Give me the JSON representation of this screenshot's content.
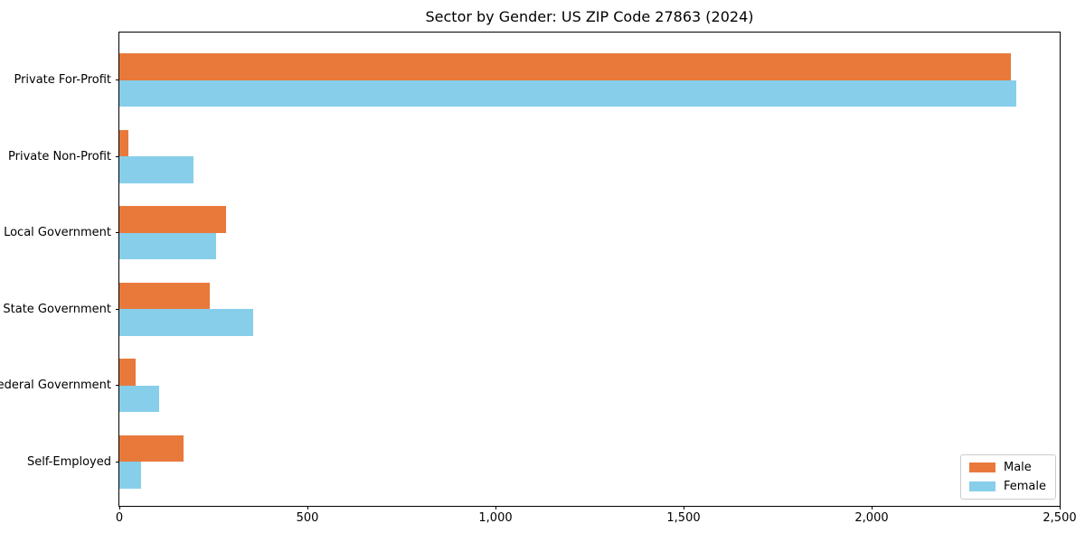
{
  "chart_data": {
    "type": "bar",
    "orientation": "horizontal",
    "title": "Sector by Gender: US ZIP Code 27863 (2024)",
    "categories": [
      "Private For-Profit",
      "Private Non-Profit",
      "Local Government",
      "State Government",
      "Federal Government",
      "Self-Employed"
    ],
    "series": [
      {
        "name": "Male",
        "color": "#E8793B",
        "values": [
          2370,
          24,
          283,
          240,
          43,
          170
        ]
      },
      {
        "name": "Female",
        "color": "#87CEEB",
        "values": [
          2385,
          197,
          257,
          355,
          106,
          58
        ]
      }
    ],
    "xlim": [
      0,
      2500
    ],
    "xticks": [
      0,
      500,
      1000,
      1500,
      2000,
      2500
    ],
    "xtick_labels": [
      "0",
      "500",
      "1,000",
      "1,500",
      "2,000",
      "2,500"
    ],
    "grid": false,
    "legend": {
      "position": "lower right",
      "entries": [
        "Male",
        "Female"
      ]
    },
    "colors": {
      "spine": "#000000",
      "text": "#000000",
      "legend_border": "#cccccc",
      "background": "#ffffff"
    }
  }
}
